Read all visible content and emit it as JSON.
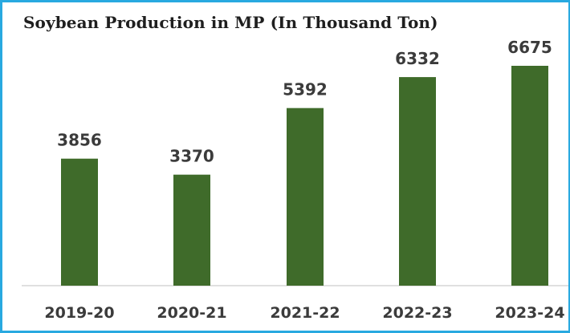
{
  "chart_data": {
    "type": "bar",
    "title": "Soybean Production in MP (In Thousand Ton)",
    "categories": [
      "2019-20",
      "2020-21",
      "2021-22",
      "2022-23",
      "2023-24"
    ],
    "values": [
      3856,
      3370,
      5392,
      6332,
      6675
    ],
    "value_labels": [
      "3856",
      "3370",
      "5392",
      "6332",
      "6675"
    ],
    "xlabel": "",
    "ylabel": "",
    "ylim": [
      0,
      7200
    ],
    "grid": false,
    "legend": "none",
    "colors": {
      "bar": "#3f6b2a",
      "frame": "#29a9e0",
      "text": "#3b3b3b"
    }
  }
}
